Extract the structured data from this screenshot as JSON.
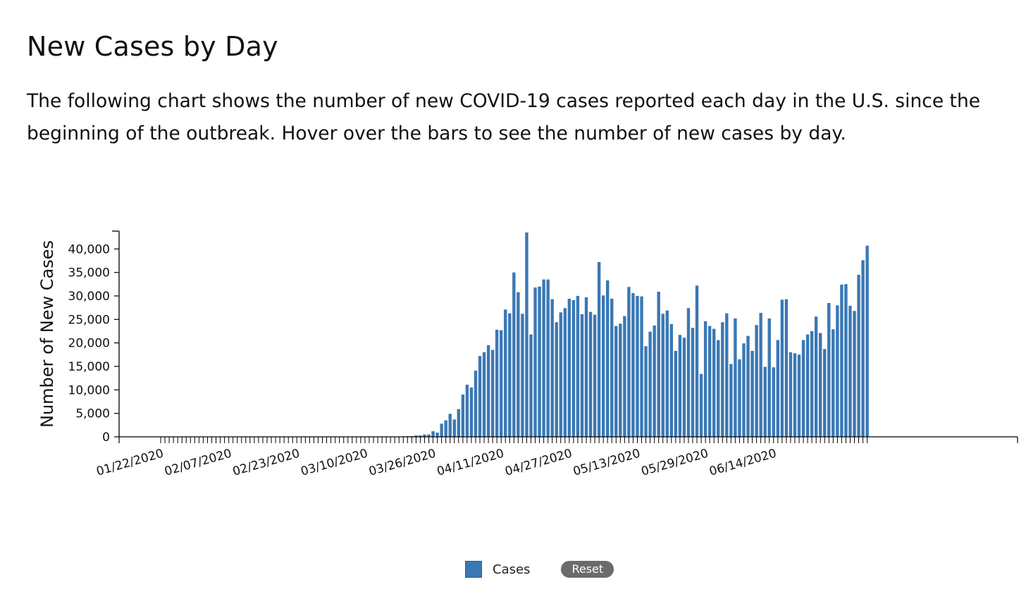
{
  "heading": "New Cases by Day",
  "description": "The following chart shows the number of new COVID-19 cases reported each day in the U.S. since the beginning of the outbreak. Hover over the bars to see the number of new cases by day.",
  "legend": {
    "label": "Cases",
    "reset_label": "Reset"
  },
  "chart_data": {
    "type": "bar",
    "ylabel": "Number of New Cases",
    "xlabel": "",
    "ylim": [
      0,
      43500
    ],
    "yticks": [
      0,
      5000,
      10000,
      15000,
      20000,
      25000,
      30000,
      35000,
      40000
    ],
    "ytick_labels": [
      "0",
      "5,000",
      "10,000",
      "15,000",
      "20,000",
      "25,000",
      "30,000",
      "35,000",
      "40,000"
    ],
    "start_date": "01/22/2020",
    "xtick_labels": [
      "01/22/2020",
      "02/07/2020",
      "02/23/2020",
      "03/10/2020",
      "03/26/2020",
      "04/11/2020",
      "04/27/2020",
      "05/13/2020",
      "05/29/2020",
      "06/14/2020"
    ],
    "series": [
      {
        "color": "#3a78b5",
        "values": [
          0,
          0,
          0,
          0,
          0,
          0,
          0,
          0,
          0,
          0,
          0,
          0,
          0,
          0,
          0,
          0,
          0,
          0,
          0,
          0,
          0,
          0,
          0,
          0,
          0,
          0,
          0,
          0,
          0,
          0,
          0,
          0,
          0,
          0,
          0,
          0,
          0,
          0,
          0,
          0,
          0,
          0,
          0,
          0,
          0,
          0,
          0,
          0,
          0,
          0,
          0,
          0,
          0,
          0,
          0,
          0,
          50,
          100,
          150,
          150,
          300,
          300,
          500,
          500,
          1200,
          900,
          2800,
          3500,
          4900,
          3700,
          5900,
          9000,
          11100,
          10500,
          14100,
          17200,
          18000,
          19500,
          18500,
          22800,
          22700,
          27100,
          26300,
          35000,
          30800,
          26200,
          43500,
          21800,
          31800,
          32000,
          33500,
          33500,
          29300,
          24400,
          26500,
          27400,
          29400,
          29100,
          30000,
          26100,
          29700,
          26600,
          26000,
          37200,
          30100,
          33300,
          29400,
          23600,
          24100,
          25700,
          31900,
          30600,
          30000,
          29900,
          19300,
          22400,
          23700,
          30900,
          26200,
          26900,
          24000,
          18300,
          21700,
          21100,
          27400,
          23200,
          32200,
          13400,
          24600,
          23600,
          23000,
          20600,
          24400,
          26300,
          15500,
          25200,
          16500,
          19900,
          21500,
          18300,
          23800,
          26400,
          14900,
          25200,
          14800,
          20600,
          29200,
          29300,
          18000,
          17800,
          17500,
          20600,
          21800,
          22500,
          25600,
          22100,
          18700,
          28500,
          22900,
          28000,
          32400,
          32500,
          27900,
          26800,
          34500,
          37600,
          40700
        ]
      }
    ]
  }
}
